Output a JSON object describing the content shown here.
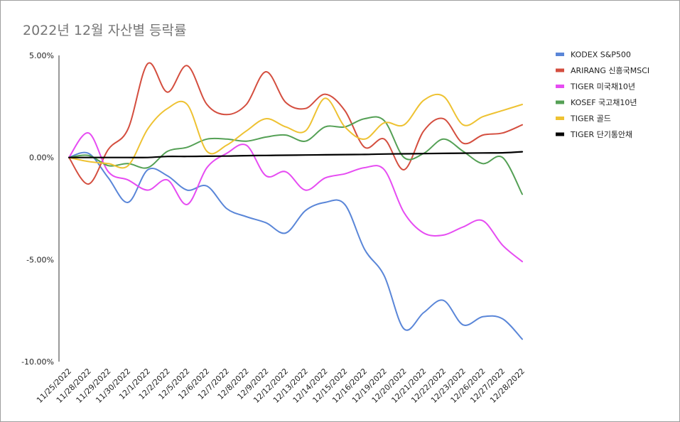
{
  "chart_data": {
    "type": "line",
    "title": "2022년 12월 자산별 등락률",
    "xlabel": "",
    "ylabel": "",
    "ylim": [
      -10,
      5
    ],
    "yticks": [
      5,
      0,
      -5,
      -10
    ],
    "ytick_labels": [
      "5.00%",
      "0.00%",
      "-5.00%",
      "-10.00%"
    ],
    "legend_position": "right",
    "categories": [
      "11/25/2022",
      "11/28/2022",
      "11/29/2022",
      "11/30/2022",
      "12/1/2022",
      "12/2/2022",
      "12/5/2022",
      "12/6/2022",
      "12/7/2022",
      "12/8/2022",
      "12/9/2022",
      "12/12/2022",
      "12/13/2022",
      "12/14/2022",
      "12/15/2022",
      "12/16/2022",
      "12/19/2022",
      "12/20/2022",
      "12/21/2022",
      "12/22/2022",
      "12/23/2022",
      "12/26/2022",
      "12/27/2022",
      "12/28/2022"
    ],
    "series": [
      {
        "name": "KODEX S&P500",
        "color": "#5a86d8",
        "values": [
          0.0,
          0.2,
          -1.0,
          -2.2,
          -0.6,
          -0.9,
          -1.6,
          -1.4,
          -2.5,
          -2.9,
          -3.2,
          -3.7,
          -2.6,
          -2.2,
          -2.3,
          -4.5,
          -5.8,
          -8.4,
          -7.6,
          -7.0,
          -8.2,
          -7.8,
          -7.9,
          -8.9
        ]
      },
      {
        "name": "ARIRANG 신흥국MSCI",
        "color": "#d44e3f",
        "values": [
          0.0,
          -1.3,
          0.4,
          1.4,
          4.6,
          3.2,
          4.5,
          2.6,
          2.1,
          2.6,
          4.2,
          2.7,
          2.4,
          3.1,
          2.3,
          0.5,
          0.9,
          -0.6,
          1.3,
          1.9,
          0.7,
          1.1,
          1.2,
          1.6
        ]
      },
      {
        "name": "TIGER 미국채10년",
        "color": "#e64cf2",
        "values": [
          0.0,
          1.2,
          -0.7,
          -1.1,
          -1.6,
          -1.1,
          -2.3,
          -0.5,
          0.2,
          0.6,
          -0.9,
          -0.7,
          -1.6,
          -1.0,
          -0.8,
          -0.5,
          -0.6,
          -2.7,
          -3.7,
          -3.8,
          -3.4,
          -3.1,
          -4.3,
          -5.1
        ]
      },
      {
        "name": "KOSEF 국고채10년",
        "color": "#54a055",
        "values": [
          0.0,
          0.1,
          -0.4,
          -0.3,
          -0.5,
          0.3,
          0.5,
          0.9,
          0.9,
          0.8,
          1.0,
          1.1,
          0.8,
          1.5,
          1.5,
          1.9,
          1.8,
          0.0,
          0.2,
          0.9,
          0.3,
          -0.3,
          0.0,
          -1.8
        ]
      },
      {
        "name": "TIGER 골드",
        "color": "#eec232",
        "values": [
          0.0,
          -0.2,
          -0.3,
          -0.4,
          1.4,
          2.4,
          2.6,
          0.3,
          0.6,
          1.3,
          1.9,
          1.5,
          1.3,
          2.9,
          1.5,
          0.9,
          1.7,
          1.6,
          2.8,
          3.0,
          1.6,
          2.0,
          2.3,
          2.6
        ]
      },
      {
        "name": "TIGER 단기통안채",
        "color": "#000000",
        "values": [
          0.0,
          0.0,
          0.0,
          0.0,
          0.0,
          0.05,
          0.05,
          0.06,
          0.07,
          0.09,
          0.1,
          0.11,
          0.12,
          0.13,
          0.14,
          0.15,
          0.17,
          0.18,
          0.19,
          0.2,
          0.21,
          0.22,
          0.23,
          0.28
        ]
      }
    ]
  }
}
